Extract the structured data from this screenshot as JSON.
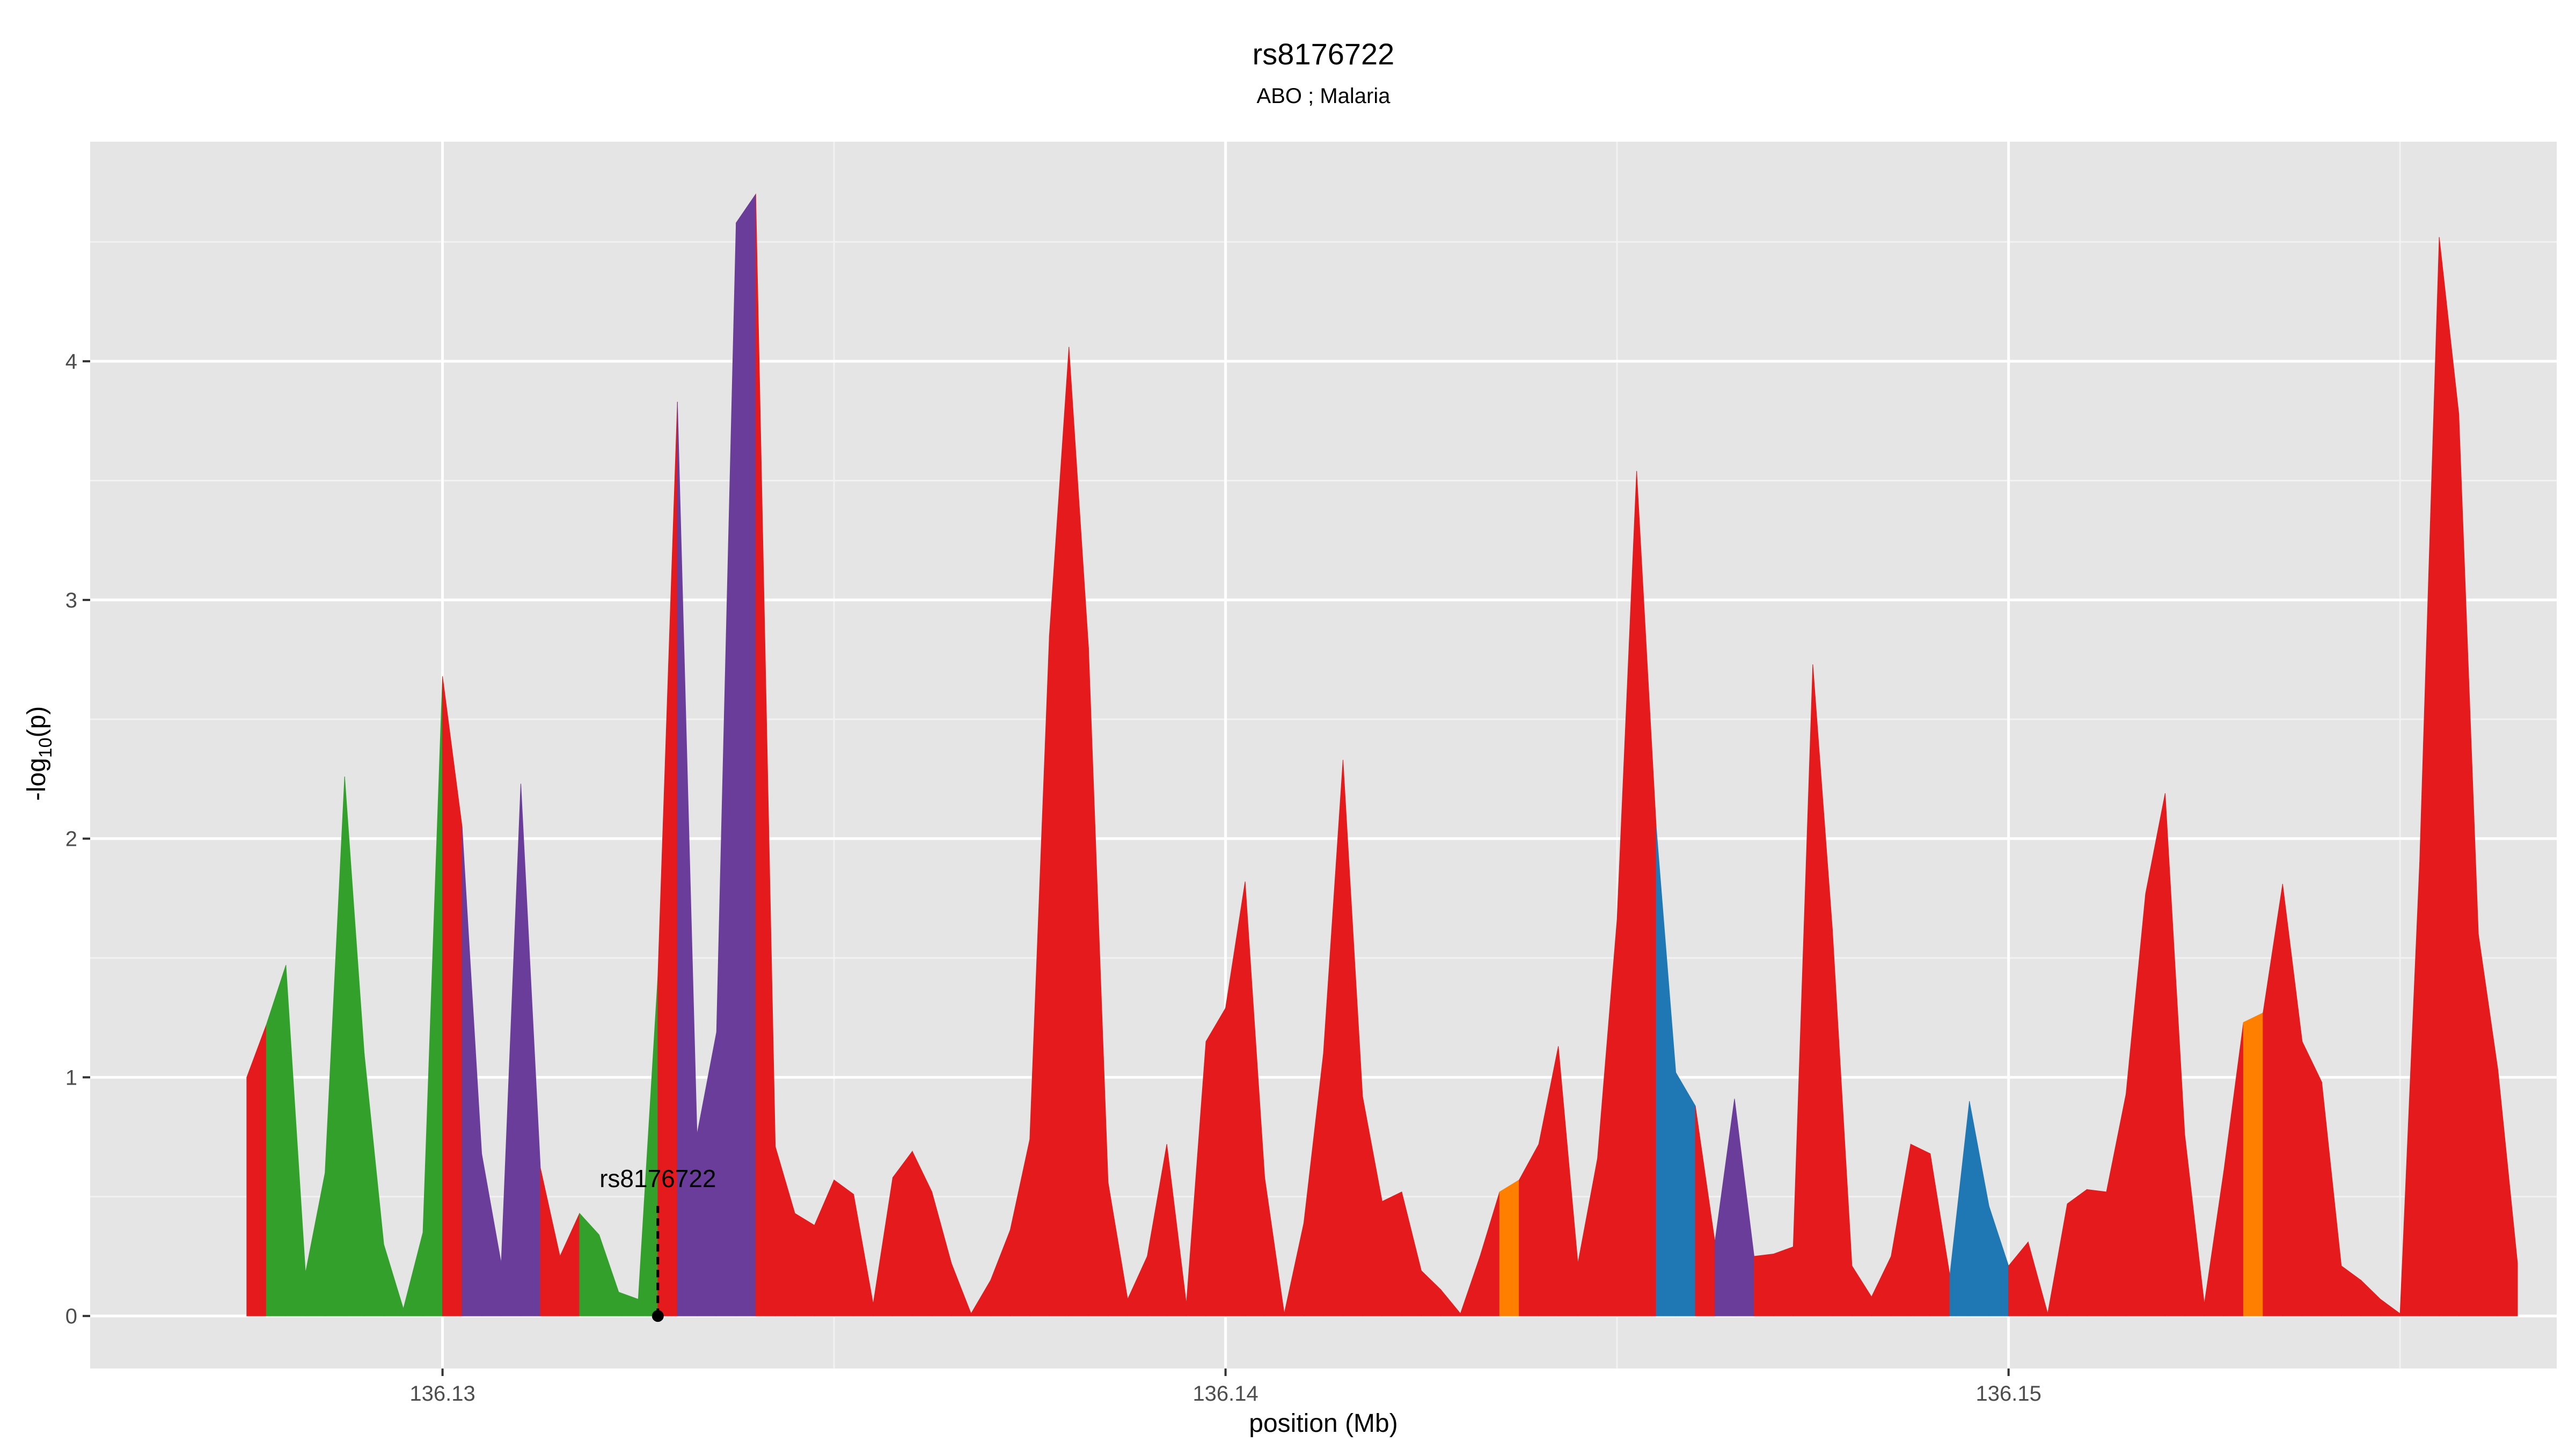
{
  "chart_data": {
    "type": "area",
    "title": "rs8176722",
    "subtitle": "ABO ; Malaria",
    "xlabel": "position (Mb)",
    "ylabel_main": "-log",
    "ylabel_sub": "10",
    "ylabel_tail": "(p)",
    "xlim": [
      136.1255,
      136.157
    ],
    "ylim": [
      -0.22,
      4.92
    ],
    "x_ticks": [
      {
        "value": 136.13,
        "label": "136.13"
      },
      {
        "value": 136.14,
        "label": "136.14"
      },
      {
        "value": 136.15,
        "label": "136.15"
      }
    ],
    "y_ticks": [
      {
        "value": 0,
        "label": "0"
      },
      {
        "value": 1,
        "label": "1"
      },
      {
        "value": 2,
        "label": "2"
      },
      {
        "value": 3,
        "label": "3"
      },
      {
        "value": 4,
        "label": "4"
      }
    ],
    "grid": true,
    "colors": {
      "red": "#E41A1C",
      "green": "#33A02C",
      "purple": "#6A3D9A",
      "blue": "#1F78B4",
      "orange": "#FF7F00"
    },
    "points": [
      [
        136.1275,
        1.0,
        "red"
      ],
      [
        136.12775,
        1.22,
        "green"
      ],
      [
        136.128,
        1.47,
        "green"
      ],
      [
        136.12825,
        0.18,
        "green"
      ],
      [
        136.1285,
        0.6,
        "green"
      ],
      [
        136.12875,
        2.26,
        "green"
      ],
      [
        136.129,
        1.1,
        "green"
      ],
      [
        136.12925,
        0.3,
        "green"
      ],
      [
        136.1295,
        0.03,
        "green"
      ],
      [
        136.12975,
        0.35,
        "green"
      ],
      [
        136.13,
        2.68,
        "red"
      ],
      [
        136.13025,
        2.05,
        "purple"
      ],
      [
        136.1305,
        0.68,
        "purple"
      ],
      [
        136.13075,
        0.22,
        "purple"
      ],
      [
        136.131,
        2.23,
        "purple"
      ],
      [
        136.13125,
        0.62,
        "red"
      ],
      [
        136.1315,
        0.25,
        "red"
      ],
      [
        136.13175,
        0.43,
        "green"
      ],
      [
        136.132,
        0.34,
        "green"
      ],
      [
        136.13225,
        0.1,
        "green"
      ],
      [
        136.1325,
        0.07,
        "green"
      ],
      [
        136.13275,
        1.42,
        "red"
      ],
      [
        136.133,
        3.83,
        "purple"
      ],
      [
        136.13325,
        0.76,
        "purple"
      ],
      [
        136.1335,
        1.19,
        "purple"
      ],
      [
        136.13375,
        4.58,
        "purple"
      ],
      [
        136.134,
        4.7,
        "red"
      ],
      [
        136.13425,
        0.71,
        "red"
      ],
      [
        136.1345,
        0.43,
        "red"
      ],
      [
        136.13475,
        0.38,
        "red"
      ],
      [
        136.135,
        0.57,
        "red"
      ],
      [
        136.13525,
        0.51,
        "red"
      ],
      [
        136.1355,
        0.05,
        "red"
      ],
      [
        136.13575,
        0.58,
        "red"
      ],
      [
        136.136,
        0.69,
        "red"
      ],
      [
        136.13625,
        0.52,
        "red"
      ],
      [
        136.1365,
        0.22,
        "red"
      ],
      [
        136.13675,
        0.01,
        "red"
      ],
      [
        136.137,
        0.15,
        "red"
      ],
      [
        136.13725,
        0.36,
        "red"
      ],
      [
        136.1375,
        0.74,
        "red"
      ],
      [
        136.13775,
        2.85,
        "red"
      ],
      [
        136.138,
        4.06,
        "red"
      ],
      [
        136.13825,
        2.8,
        "red"
      ],
      [
        136.1385,
        0.56,
        "red"
      ],
      [
        136.13875,
        0.07,
        "red"
      ],
      [
        136.139,
        0.25,
        "red"
      ],
      [
        136.13925,
        0.72,
        "red"
      ],
      [
        136.1395,
        0.05,
        "red"
      ],
      [
        136.13975,
        1.15,
        "red"
      ],
      [
        136.14,
        1.29,
        "red"
      ],
      [
        136.14025,
        1.82,
        "red"
      ],
      [
        136.1405,
        0.58,
        "red"
      ],
      [
        136.14075,
        0.01,
        "red"
      ],
      [
        136.141,
        0.39,
        "red"
      ],
      [
        136.14125,
        1.1,
        "red"
      ],
      [
        136.1415,
        2.33,
        "red"
      ],
      [
        136.14175,
        0.92,
        "red"
      ],
      [
        136.142,
        0.48,
        "red"
      ],
      [
        136.14225,
        0.52,
        "red"
      ],
      [
        136.1425,
        0.19,
        "red"
      ],
      [
        136.14275,
        0.11,
        "red"
      ],
      [
        136.143,
        0.01,
        "red"
      ],
      [
        136.14325,
        0.25,
        "red"
      ],
      [
        136.1435,
        0.52,
        "orange"
      ],
      [
        136.14375,
        0.57,
        "red"
      ],
      [
        136.144,
        0.72,
        "red"
      ],
      [
        136.14425,
        1.13,
        "red"
      ],
      [
        136.1445,
        0.22,
        "red"
      ],
      [
        136.14475,
        0.66,
        "red"
      ],
      [
        136.145,
        1.66,
        "red"
      ],
      [
        136.14525,
        3.54,
        "red"
      ],
      [
        136.1455,
        2.05,
        "blue"
      ],
      [
        136.14575,
        1.02,
        "blue"
      ],
      [
        136.146,
        0.88,
        "red"
      ],
      [
        136.14625,
        0.31,
        "purple"
      ],
      [
        136.1465,
        0.91,
        "purple"
      ],
      [
        136.14675,
        0.25,
        "red"
      ],
      [
        136.147,
        0.26,
        "red"
      ],
      [
        136.14725,
        0.29,
        "red"
      ],
      [
        136.1475,
        2.73,
        "red"
      ],
      [
        136.14775,
        1.62,
        "red"
      ],
      [
        136.148,
        0.21,
        "red"
      ],
      [
        136.14825,
        0.08,
        "red"
      ],
      [
        136.1485,
        0.25,
        "red"
      ],
      [
        136.14875,
        0.72,
        "red"
      ],
      [
        136.149,
        0.68,
        "red"
      ],
      [
        136.14925,
        0.17,
        "blue"
      ],
      [
        136.1495,
        0.9,
        "blue"
      ],
      [
        136.14975,
        0.46,
        "blue"
      ],
      [
        136.15,
        0.21,
        "red"
      ],
      [
        136.15025,
        0.31,
        "red"
      ],
      [
        136.1505,
        0.01,
        "red"
      ],
      [
        136.15075,
        0.47,
        "red"
      ],
      [
        136.151,
        0.53,
        "red"
      ],
      [
        136.15125,
        0.52,
        "red"
      ],
      [
        136.1515,
        0.93,
        "red"
      ],
      [
        136.15175,
        1.77,
        "red"
      ],
      [
        136.152,
        2.19,
        "red"
      ],
      [
        136.15225,
        0.76,
        "red"
      ],
      [
        136.1525,
        0.05,
        "red"
      ],
      [
        136.15275,
        0.61,
        "red"
      ],
      [
        136.153,
        1.23,
        "orange"
      ],
      [
        136.15325,
        1.27,
        "red"
      ],
      [
        136.1535,
        1.81,
        "red"
      ],
      [
        136.15375,
        1.15,
        "red"
      ],
      [
        136.154,
        0.98,
        "red"
      ],
      [
        136.15425,
        0.21,
        "red"
      ],
      [
        136.1545,
        0.15,
        "red"
      ],
      [
        136.15475,
        0.07,
        "red"
      ],
      [
        136.155,
        0.01,
        "red"
      ],
      [
        136.15525,
        1.9,
        "red"
      ],
      [
        136.1555,
        4.52,
        "red"
      ],
      [
        136.15575,
        3.78,
        "red"
      ],
      [
        136.156,
        1.6,
        "red"
      ],
      [
        136.15625,
        1.03,
        "red"
      ],
      [
        136.1565,
        0.22,
        "red"
      ]
    ],
    "annotation": {
      "label": "rs8176722",
      "x": 136.13275,
      "y": 0.0
    }
  }
}
